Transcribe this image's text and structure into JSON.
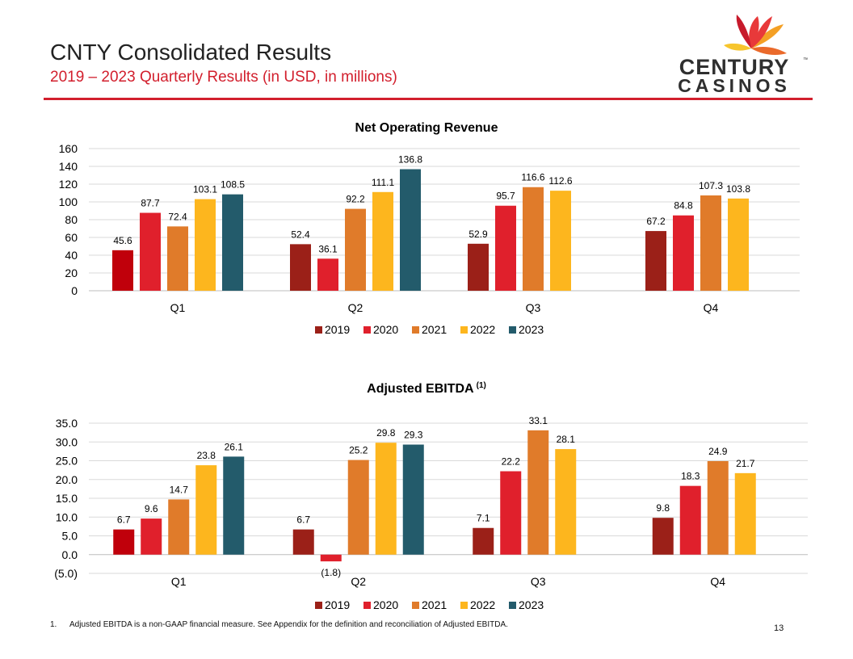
{
  "slide": {
    "title": "CNTY Consolidated Results",
    "subtitle": "2019 – 2023 Quarterly Results (in USD, in millions)",
    "page_number": "13",
    "accent_color": "#d21f2d"
  },
  "logo": {
    "line1": "CENTURY",
    "line2": "CASINOS",
    "trademark": "™",
    "colors": [
      "#e8393a",
      "#f4a025",
      "#f7c52d",
      "#c71a2b",
      "#ea6a2b"
    ]
  },
  "footnote": {
    "number": "1.",
    "text": "Adjusted EBITDA is a non-GAAP financial measure. See Appendix for the definition and reconciliation of Adjusted EBITDA."
  },
  "chart_data": [
    {
      "type": "bar",
      "title": "Net Operating Revenue",
      "title_superscript": "",
      "categories": [
        "Q1",
        "Q2",
        "Q3",
        "Q4"
      ],
      "ylim": [
        0,
        160
      ],
      "ytick_values": [
        0,
        20,
        40,
        60,
        80,
        100,
        120,
        140,
        160
      ],
      "ytick_labels": [
        "0",
        "20",
        "40",
        "60",
        "80",
        "100",
        "120",
        "140",
        "160"
      ],
      "grid": true,
      "legend_position": "bottom",
      "series": [
        {
          "name": "2019",
          "color": "#9b2018",
          "values": [
            45.6,
            52.4,
            52.9,
            67.2
          ],
          "labels": [
            "45.6",
            "52.4",
            "52.9",
            "67.2"
          ]
        },
        {
          "name": "2020",
          "color": "#e0202c",
          "values": [
            87.7,
            36.1,
            95.7,
            84.8
          ],
          "labels": [
            "87.7",
            "36.1",
            "95.7",
            "84.8"
          ]
        },
        {
          "name": "2021",
          "color": "#e07b2a",
          "values": [
            72.4,
            92.2,
            116.6,
            107.3
          ],
          "labels": [
            "72.4",
            "92.2",
            "116.6",
            "107.3"
          ]
        },
        {
          "name": "2022",
          "color": "#fdb61e",
          "values": [
            103.1,
            111.1,
            112.6,
            103.8
          ],
          "labels": [
            "103.1",
            "111.1",
            "112.6",
            "103.8"
          ]
        },
        {
          "name": "2023",
          "color": "#235b6b",
          "values": [
            108.5,
            136.8,
            null,
            null
          ],
          "labels": [
            "108.5",
            "136.8",
            null,
            null
          ]
        }
      ],
      "point_colors": {
        "0-0": "#c0000b"
      }
    },
    {
      "type": "bar",
      "title": "Adjusted EBITDA",
      "title_superscript": "(1)",
      "categories": [
        "Q1",
        "Q2",
        "Q3",
        "Q4"
      ],
      "ylim": [
        -5,
        35
      ],
      "ytick_values": [
        -5,
        0,
        5,
        10,
        15,
        20,
        25,
        30,
        35
      ],
      "ytick_labels": [
        "(5.0)",
        "0.0",
        "5.0",
        "10.0",
        "15.0",
        "20.0",
        "25.0",
        "30.0",
        "35.0"
      ],
      "grid": true,
      "legend_position": "bottom",
      "series": [
        {
          "name": "2019",
          "color": "#9b2018",
          "values": [
            6.7,
            6.7,
            7.1,
            9.8
          ],
          "labels": [
            "6.7",
            "6.7",
            "7.1",
            "9.8"
          ]
        },
        {
          "name": "2020",
          "color": "#e0202c",
          "values": [
            9.6,
            -1.8,
            22.2,
            18.3
          ],
          "labels": [
            "9.6",
            "(1.8)",
            "22.2",
            "18.3"
          ]
        },
        {
          "name": "2021",
          "color": "#e07b2a",
          "values": [
            14.7,
            25.2,
            33.1,
            24.9
          ],
          "labels": [
            "14.7",
            "25.2",
            "33.1",
            "24.9"
          ]
        },
        {
          "name": "2022",
          "color": "#fdb61e",
          "values": [
            23.8,
            29.8,
            28.1,
            21.7
          ],
          "labels": [
            "23.8",
            "29.8",
            "28.1",
            "21.7"
          ]
        },
        {
          "name": "2023",
          "color": "#235b6b",
          "values": [
            26.1,
            29.3,
            null,
            null
          ],
          "labels": [
            "26.1",
            "29.3",
            null,
            null
          ]
        }
      ],
      "point_colors": {
        "0-0": "#c0000b"
      }
    }
  ]
}
